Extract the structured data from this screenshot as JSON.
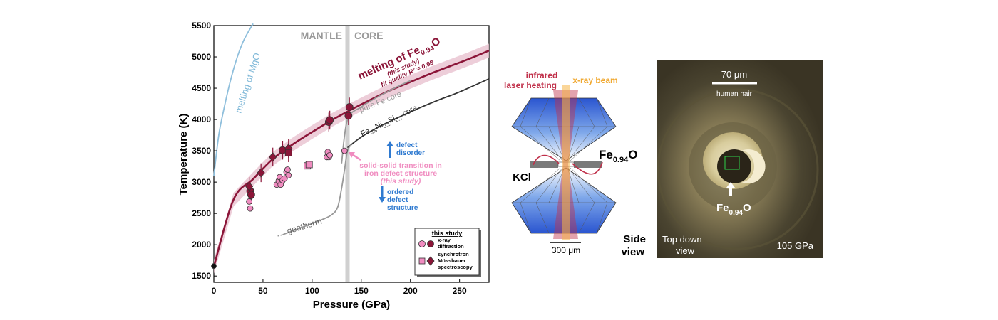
{
  "chart_data": {
    "type": "scatter",
    "xlabel": "Pressure (GPa)",
    "ylabel": "Temperature (K)",
    "xlim": [
      0,
      280
    ],
    "ylim": [
      1400,
      5500
    ],
    "xticks": [
      0,
      50,
      100,
      150,
      200,
      250
    ],
    "yticks": [
      1500,
      2000,
      2500,
      3000,
      3500,
      4000,
      4500,
      5000,
      5500
    ],
    "grid": false,
    "legend_position": "bottom-right",
    "regions": [
      {
        "label": "MANTLE",
        "side": "left"
      },
      {
        "label": "CORE",
        "side": "right"
      }
    ],
    "boundary_pressure": 136,
    "series": [
      {
        "name": "melting of Fe0.94O",
        "kind": "fit-curve",
        "color": "#8b1538",
        "x": [
          0,
          20,
          40,
          60,
          80,
          100,
          120,
          140,
          160,
          180,
          200,
          220,
          240,
          260,
          280
        ],
        "y": [
          1650,
          2720,
          3050,
          3370,
          3600,
          3800,
          3990,
          4160,
          4320,
          4470,
          4600,
          4730,
          4850,
          4970,
          5100
        ]
      },
      {
        "name": "melting of MgO",
        "kind": "curve",
        "color": "#8fbfdc",
        "x": [
          0,
          5,
          10,
          15,
          20,
          25,
          30,
          35,
          40
        ],
        "y": [
          3100,
          3750,
          4150,
          4500,
          4800,
          5050,
          5250,
          5400,
          5530
        ]
      },
      {
        "name": "pure Fe core",
        "kind": "curve",
        "color": "#999999",
        "x": [
          130,
          136,
          150,
          160,
          170,
          180,
          190,
          200
        ],
        "y": [
          3300,
          4000,
          4200,
          4300,
          4390,
          4470,
          4550,
          4620
        ]
      },
      {
        "name": "Fe0.8Ni0.1Si0.1 core",
        "kind": "curve",
        "color": "#333333",
        "x": [
          136,
          150,
          170,
          190,
          210,
          230,
          250,
          280
        ],
        "y": [
          3550,
          3720,
          3900,
          4050,
          4190,
          4320,
          4440,
          4650
        ]
      },
      {
        "name": "geotherm",
        "kind": "curve",
        "color": "#999999",
        "x": [
          70,
          90,
          110,
          120,
          126,
          130,
          133,
          136,
          140
        ],
        "y": [
          2160,
          2280,
          2400,
          2480,
          2600,
          2900,
          3200,
          3500,
          3600
        ]
      },
      {
        "name": "x-ray diffraction (solid)",
        "kind": "points",
        "marker": "circle",
        "color": "#f08cc0",
        "x": [
          36,
          37,
          38,
          38,
          64,
          66,
          67,
          68,
          70,
          72,
          74,
          75,
          76,
          115,
          116,
          117,
          118,
          133
        ],
        "y": [
          2690,
          2580,
          2780,
          2860,
          2960,
          3020,
          3080,
          2960,
          3030,
          3060,
          3160,
          3200,
          3110,
          3400,
          3480,
          3400,
          3430,
          3500
        ]
      },
      {
        "name": "x-ray diffraction (molten)",
        "kind": "points",
        "marker": "circle",
        "color": "#8b1538",
        "x": [
          0,
          37,
          38,
          70,
          117,
          118,
          137,
          138
        ],
        "y": [
          1660,
          2860,
          2800,
          3510,
          3960,
          3990,
          4060,
          4200
        ]
      },
      {
        "name": "synchrotron Mössbauer spectroscopy (solid)",
        "kind": "points",
        "marker": "square",
        "color": "#f08cc0",
        "x": [
          95,
          97
        ],
        "y": [
          3260,
          3280
        ]
      },
      {
        "name": "synchrotron Mössbauer spectroscopy (molten)",
        "kind": "points",
        "marker": "diamond",
        "color": "#8b1538",
        "x": [
          36,
          48,
          60,
          76
        ],
        "y": [
          2930,
          3150,
          3400,
          3540
        ]
      },
      {
        "name": "synchrotron Mössbauer spectroscopy (molten, square)",
        "kind": "points",
        "marker": "square",
        "color": "#8b1538",
        "x": [
          76
        ],
        "y": [
          3470
        ]
      }
    ]
  },
  "chart_text": {
    "mantle_label": "MANTLE",
    "core_label": "CORE",
    "melting_fe_label": "melting of Fe",
    "melting_fe_sub": "0.94",
    "melting_fe_O": "O",
    "this_study_note": "(this study)",
    "fit_quality_note": "fit quality R² = 0.98",
    "mgo_label": "melting of MgO",
    "pure_fe_label": "pure Fe core",
    "alloy_label_fe": "Fe",
    "alloy_label_sub1": "0.8",
    "alloy_label_ni": "Ni",
    "alloy_label_sub2": "0.1",
    "alloy_label_si": "Si",
    "alloy_label_sub3": "0.1",
    "alloy_label_core": " core",
    "geotherm_label": "geotherm",
    "transition_line1": "solid-solid transition in",
    "transition_line2": "iron defect structure",
    "transition_line3": "(this study)",
    "defect_disorder_1": "defect",
    "defect_disorder_2": "disorder",
    "ordered_1": "ordered",
    "ordered_2": "defect",
    "ordered_3": "structure",
    "legend_title": "this study",
    "legend_xrd_1": "x-ray",
    "legend_xrd_2": "diffraction",
    "legend_sms_1": "synchrotron",
    "legend_sms_2": "Mössbauer",
    "legend_sms_3": "spectroscopy"
  },
  "diagram": {
    "infrared_1": "infrared",
    "infrared_2": "laser heating",
    "xray_beam": "x-ray beam",
    "sample_label": "Fe",
    "sample_sub": "0.94",
    "sample_O": "O",
    "kcl_label": "KCl",
    "scale_label": "300 μm",
    "side_view_1": "Side",
    "side_view_2": "view",
    "colors": {
      "infrared": "#c0304a",
      "xray": "#f5b445",
      "diamond": "#2a5fd0"
    }
  },
  "photo": {
    "scale_label": "70 μm",
    "scale_note": "human hair",
    "sample_label": "Fe",
    "sample_sub": "0.94",
    "sample_O": "O",
    "view_1": "Top down",
    "view_2": "view",
    "pressure_label": "105 GPa"
  }
}
